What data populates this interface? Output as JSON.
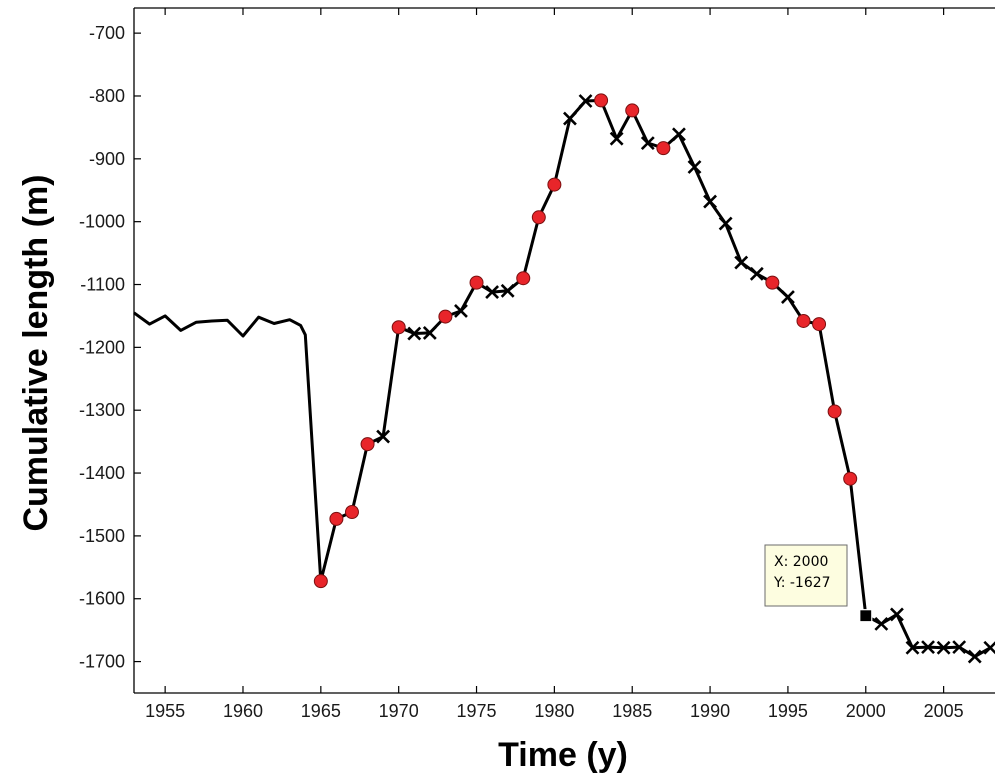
{
  "chart_data": {
    "type": "line",
    "title": "",
    "xlabel": "Time (y)",
    "ylabel": "Cumulative length (m)",
    "xlim": [
      1953,
      2008.3
    ],
    "ylim": [
      -1750,
      -660
    ],
    "xticks": [
      1955,
      1960,
      1965,
      1970,
      1975,
      1980,
      1985,
      1990,
      1995,
      2000,
      2005
    ],
    "yticks": [
      -700,
      -800,
      -900,
      -1000,
      -1100,
      -1200,
      -1300,
      -1400,
      -1500,
      -1600,
      -1700
    ],
    "grid": false,
    "line_color": "#000000",
    "circle_color": "#e8252a",
    "line": [
      [
        1953,
        -1145
      ],
      [
        1954,
        -1163
      ],
      [
        1955,
        -1150
      ],
      [
        1956,
        -1173
      ],
      [
        1957,
        -1160
      ],
      [
        1958,
        -1158
      ],
      [
        1959,
        -1157
      ],
      [
        1960,
        -1182
      ],
      [
        1961,
        -1152
      ],
      [
        1962,
        -1162
      ],
      [
        1963,
        -1156
      ],
      [
        1963.7,
        -1165
      ],
      [
        1964,
        -1180
      ],
      [
        1965,
        -1572
      ],
      [
        1966,
        -1473
      ],
      [
        1967,
        -1462
      ],
      [
        1968,
        -1354
      ],
      [
        1969,
        -1342
      ],
      [
        1970,
        -1168
      ],
      [
        1971,
        -1178
      ],
      [
        1972,
        -1177
      ],
      [
        1973,
        -1151
      ],
      [
        1974,
        -1142
      ],
      [
        1975,
        -1097
      ],
      [
        1976,
        -1112
      ],
      [
        1977,
        -1110
      ],
      [
        1978,
        -1090
      ],
      [
        1979,
        -993
      ],
      [
        1980,
        -941
      ],
      [
        1981,
        -836
      ],
      [
        1982,
        -808
      ],
      [
        1983,
        -807
      ],
      [
        1984,
        -868
      ],
      [
        1985,
        -823
      ],
      [
        1986,
        -875
      ],
      [
        1987,
        -883
      ],
      [
        1988,
        -861
      ],
      [
        1989,
        -913
      ],
      [
        1990,
        -968
      ],
      [
        1991,
        -1003
      ],
      [
        1992,
        -1065
      ],
      [
        1993,
        -1083
      ],
      [
        1994,
        -1097
      ],
      [
        1995,
        -1120
      ],
      [
        1996,
        -1158
      ],
      [
        1997,
        -1163
      ],
      [
        1998,
        -1302
      ],
      [
        1999,
        -1409
      ],
      [
        2000,
        -1627
      ],
      [
        2001,
        -1640
      ],
      [
        2002,
        -1625
      ],
      [
        2003,
        -1678
      ],
      [
        2004,
        -1677
      ],
      [
        2005,
        -1678
      ],
      [
        2006,
        -1677
      ],
      [
        2007,
        -1692
      ],
      [
        2008,
        -1678
      ]
    ],
    "circle_points": [
      [
        1965,
        -1572
      ],
      [
        1966,
        -1473
      ],
      [
        1967,
        -1462
      ],
      [
        1968,
        -1354
      ],
      [
        1970,
        -1168
      ],
      [
        1973,
        -1151
      ],
      [
        1975,
        -1097
      ],
      [
        1978,
        -1090
      ],
      [
        1979,
        -993
      ],
      [
        1980,
        -941
      ],
      [
        1983,
        -807
      ],
      [
        1985,
        -823
      ],
      [
        1987,
        -883
      ],
      [
        1994,
        -1097
      ],
      [
        1996,
        -1158
      ],
      [
        1997,
        -1163
      ],
      [
        1998,
        -1302
      ],
      [
        1999,
        -1409
      ]
    ],
    "cross_points": [
      [
        1969,
        -1342
      ],
      [
        1971,
        -1178
      ],
      [
        1972,
        -1177
      ],
      [
        1974,
        -1142
      ],
      [
        1976,
        -1112
      ],
      [
        1977,
        -1110
      ],
      [
        1981,
        -836
      ],
      [
        1982,
        -808
      ],
      [
        1984,
        -868
      ],
      [
        1986,
        -875
      ],
      [
        1988,
        -861
      ],
      [
        1989,
        -913
      ],
      [
        1990,
        -968
      ],
      [
        1991,
        -1003
      ],
      [
        1992,
        -1065
      ],
      [
        1993,
        -1083
      ],
      [
        1995,
        -1120
      ],
      [
        2001,
        -1640
      ],
      [
        2002,
        -1625
      ],
      [
        2003,
        -1678
      ],
      [
        2004,
        -1677
      ],
      [
        2005,
        -1678
      ],
      [
        2006,
        -1677
      ],
      [
        2007,
        -1692
      ],
      [
        2008,
        -1678
      ]
    ],
    "datatip": {
      "point": [
        2000,
        -1627
      ],
      "x_text": "X: 2000",
      "y_text": "Y: -1627"
    }
  }
}
